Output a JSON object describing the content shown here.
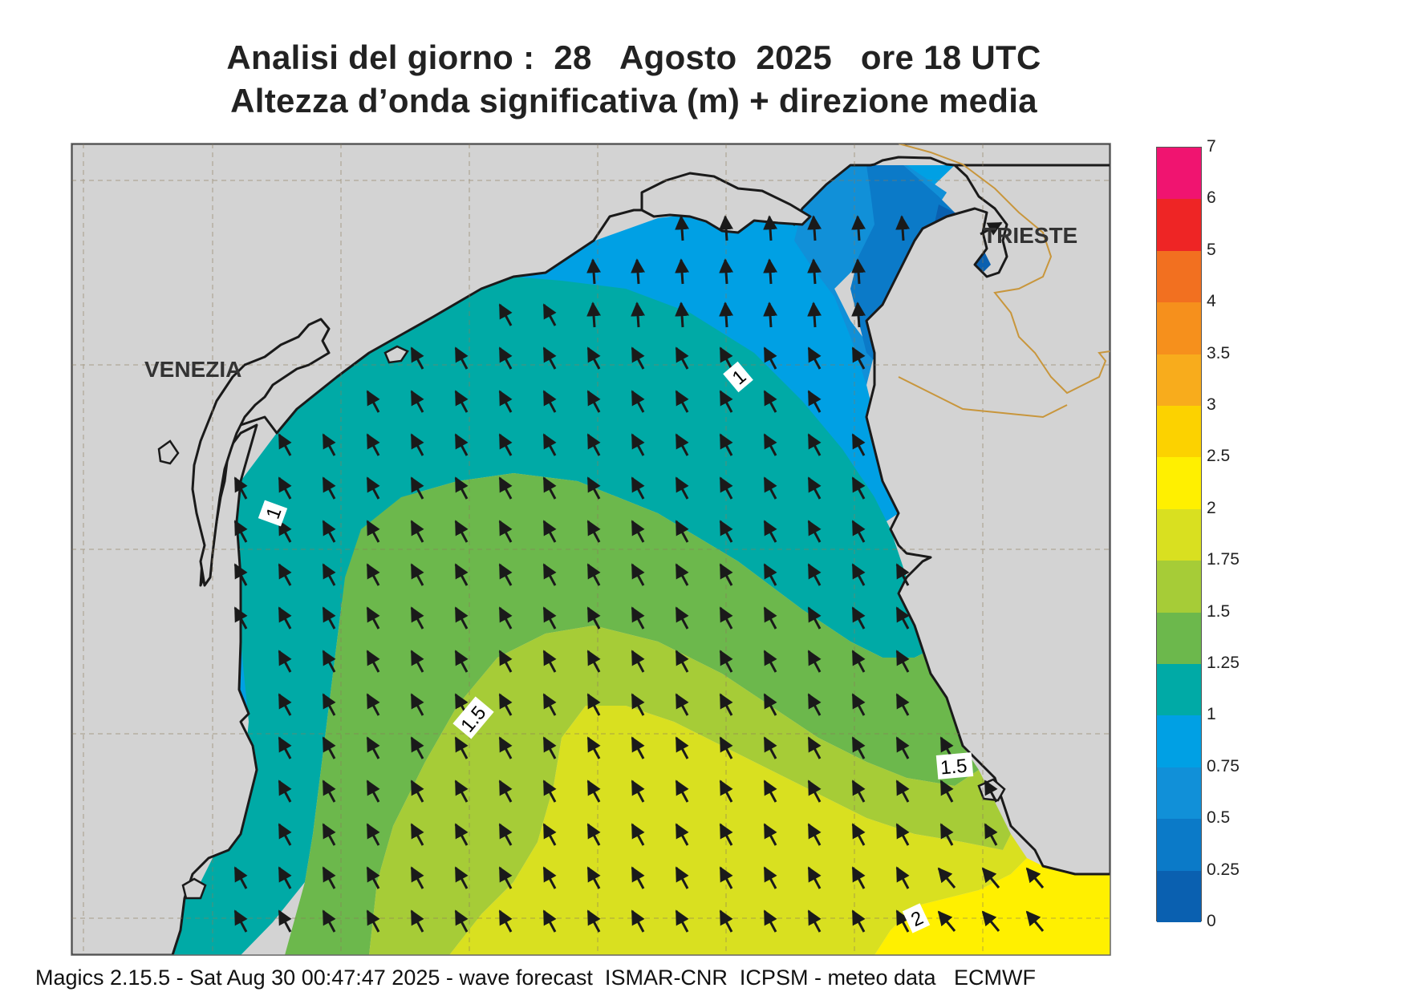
{
  "header": {
    "line1": "Analisi del giorno :  28   Agosto  2025   ore 18 UTC",
    "line2": "Altezza d’onda significativa (m) + direzione media"
  },
  "map": {
    "places": {
      "venezia": "VENEZIA",
      "trieste": "TRIESTE"
    },
    "contour_labels": [
      "1",
      "1",
      "1.5",
      "1.5",
      "2"
    ],
    "arrow_direction": "NW",
    "land_color": "#d3d3d3",
    "coast_color": "#1a1a1a",
    "border_color": "#c8963c"
  },
  "colorbar": {
    "labels": [
      "7",
      "6",
      "5",
      "4",
      "3.5",
      "3",
      "2.5",
      "2",
      "1.75",
      "1.5",
      "1.25",
      "1",
      "0.75",
      "0.5",
      "0.25",
      "0"
    ],
    "colors": [
      "#f01470",
      "#ee2525",
      "#f27020",
      "#f6901c",
      "#f8ac1c",
      "#fcd200",
      "#fff000",
      "#d9e020",
      "#a6cc37",
      "#6cb84c",
      "#00aaa6",
      "#00a0e4",
      "#1190d8",
      "#0b7ac8",
      "#0a60b0"
    ]
  },
  "footer": "Magics 2.15.5 - Sat Aug 30 00:47:47 2025 - wave forecast  ISMAR-CNR  ICPSM - meteo data   ECMWF"
}
